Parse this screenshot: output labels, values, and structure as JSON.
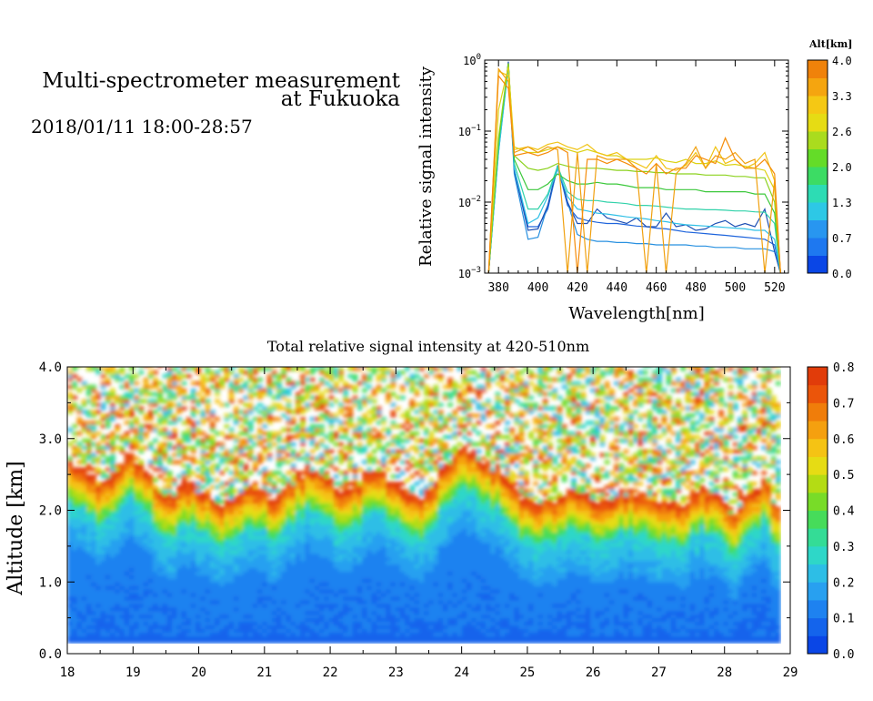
{
  "header": {
    "title_line1": "Multi-spectrometer measurement",
    "title_line2": "at Fukuoka",
    "date_range": "2018/01/11 18:00-28:57"
  },
  "chart_data": [
    {
      "type": "line",
      "name": "spectra",
      "xlabel": "Wavelength[nm]",
      "ylabel": "Relative signal intensity",
      "xlim": [
        373,
        527
      ],
      "ylim": [
        0.001,
        1
      ],
      "yscale": "log",
      "xticks": [
        380,
        400,
        420,
        440,
        460,
        480,
        500,
        520
      ],
      "yticks": [
        0.001,
        0.01,
        0.1,
        1
      ],
      "ytick_labels": [
        [
          "10",
          "−3"
        ],
        [
          "10",
          "−2"
        ],
        [
          "10",
          "−1"
        ],
        [
          "10",
          "0"
        ]
      ],
      "colorbar": {
        "title": "Alt[km]",
        "min": 0.0,
        "max": 4.0,
        "tick_labels": [
          "0.0",
          "0.7",
          "1.3",
          "2.0",
          "2.6",
          "3.3",
          "4.0"
        ],
        "colors": [
          "#0a46e6",
          "#1e78f0",
          "#2896f0",
          "#2dc8e6",
          "#2ddcb4",
          "#3cdc64",
          "#64dc28",
          "#aadc1e",
          "#e6dc14",
          "#f5c814",
          "#f5a50f",
          "#f0820a"
        ]
      },
      "x": [
        375,
        380,
        385,
        388,
        395,
        400,
        405,
        410,
        415,
        420,
        425,
        430,
        435,
        440,
        445,
        450,
        455,
        460,
        465,
        470,
        475,
        480,
        485,
        490,
        495,
        500,
        505,
        510,
        515,
        520,
        523
      ],
      "series": [
        {
          "color": "#1e64dc",
          "values": [
            0.001,
            0.06,
            0.9,
            0.03,
            0.0045,
            0.0045,
            0.008,
            0.032,
            0.009,
            0.006,
            0.0055,
            0.0052,
            0.005,
            0.005,
            0.0048,
            0.0046,
            0.0045,
            0.0043,
            0.0042,
            0.004,
            0.0038,
            0.0037,
            0.0036,
            0.0035,
            0.0034,
            0.0033,
            0.0032,
            0.0031,
            0.003,
            0.0025,
            0.001
          ]
        },
        {
          "color": "#2890e0",
          "values": [
            0.001,
            0.05,
            0.85,
            0.025,
            0.003,
            0.0032,
            0.009,
            0.03,
            0.01,
            0.0035,
            0.003,
            0.0028,
            0.0028,
            0.0027,
            0.0027,
            0.0026,
            0.0026,
            0.0025,
            0.0025,
            0.0025,
            0.0025,
            0.0024,
            0.0024,
            0.0023,
            0.0023,
            0.0023,
            0.0022,
            0.0022,
            0.0022,
            0.002,
            0.001
          ]
        },
        {
          "color": "#1e50b4",
          "values": [
            0.001,
            0.055,
            0.95,
            0.028,
            0.004,
            0.0042,
            0.009,
            0.033,
            0.01,
            0.005,
            0.005,
            0.008,
            0.006,
            0.0055,
            0.005,
            0.006,
            0.0045,
            0.0045,
            0.007,
            0.0045,
            0.0048,
            0.004,
            0.0042,
            0.005,
            0.0055,
            0.0045,
            0.005,
            0.0045,
            0.008,
            0.002,
            0.001
          ]
        },
        {
          "color": "#30c0e6",
          "values": [
            0.001,
            0.05,
            0.8,
            0.03,
            0.005,
            0.006,
            0.012,
            0.03,
            0.012,
            0.008,
            0.0075,
            0.007,
            0.0068,
            0.0065,
            0.0062,
            0.006,
            0.0058,
            0.0055,
            0.0053,
            0.005,
            0.0048,
            0.0047,
            0.0046,
            0.0045,
            0.0044,
            0.0043,
            0.0042,
            0.004,
            0.004,
            0.003,
            0.001
          ]
        },
        {
          "color": "#32d2aa",
          "values": [
            0.001,
            0.06,
            0.85,
            0.035,
            0.008,
            0.008,
            0.013,
            0.032,
            0.014,
            0.011,
            0.0105,
            0.0105,
            0.01,
            0.0098,
            0.0095,
            0.009,
            0.009,
            0.0088,
            0.0085,
            0.0082,
            0.008,
            0.008,
            0.0078,
            0.0078,
            0.0077,
            0.0075,
            0.0075,
            0.0073,
            0.0072,
            0.005,
            0.001
          ]
        },
        {
          "color": "#3cc83c",
          "values": [
            0.001,
            0.07,
            0.9,
            0.04,
            0.015,
            0.015,
            0.018,
            0.025,
            0.02,
            0.018,
            0.018,
            0.019,
            0.018,
            0.018,
            0.017,
            0.016,
            0.016,
            0.016,
            0.015,
            0.015,
            0.015,
            0.015,
            0.014,
            0.014,
            0.014,
            0.014,
            0.014,
            0.013,
            0.013,
            0.007,
            0.001
          ]
        },
        {
          "color": "#8cd21e",
          "values": [
            0.001,
            0.08,
            0.9,
            0.045,
            0.03,
            0.028,
            0.03,
            0.035,
            0.032,
            0.03,
            0.03,
            0.03,
            0.029,
            0.028,
            0.028,
            0.027,
            0.027,
            0.026,
            0.026,
            0.025,
            0.025,
            0.025,
            0.024,
            0.024,
            0.024,
            0.023,
            0.023,
            0.022,
            0.022,
            0.01,
            0.001
          ]
        },
        {
          "color": "#dcd214",
          "values": [
            0.001,
            0.2,
            0.8,
            0.06,
            0.05,
            0.05,
            0.055,
            0.06,
            0.055,
            0.05,
            0.055,
            0.05,
            0.045,
            0.045,
            0.04,
            0.04,
            0.04,
            0.042,
            0.038,
            0.036,
            0.04,
            0.035,
            0.035,
            0.038,
            0.033,
            0.034,
            0.032,
            0.03,
            0.028,
            0.015,
            0.001
          ]
        },
        {
          "color": "#f0c314",
          "values": [
            0.001,
            0.7,
            0.6,
            0.055,
            0.06,
            0.055,
            0.065,
            0.07,
            0.06,
            0.055,
            0.065,
            0.05,
            0.045,
            0.05,
            0.04,
            0.035,
            0.03,
            0.045,
            0.03,
            0.028,
            0.033,
            0.05,
            0.03,
            0.06,
            0.035,
            0.04,
            0.03,
            0.035,
            0.05,
            0.02,
            0.001
          ]
        },
        {
          "color": "#f0a00f",
          "values": [
            0.001,
            0.75,
            0.5,
            0.05,
            0.06,
            0.05,
            0.06,
            0.055,
            0.001,
            0.05,
            0.001,
            0.045,
            0.04,
            0.04,
            0.04,
            0.03,
            0.001,
            0.035,
            0.001,
            0.025,
            0.035,
            0.06,
            0.03,
            0.045,
            0.04,
            0.05,
            0.035,
            0.04,
            0.001,
            0.02,
            0.001
          ]
        },
        {
          "color": "#f58c0a",
          "values": [
            0.001,
            0.6,
            0.4,
            0.045,
            0.05,
            0.045,
            0.05,
            0.06,
            0.05,
            0.001,
            0.04,
            0.04,
            0.035,
            0.04,
            0.035,
            0.03,
            0.025,
            0.035,
            0.025,
            0.03,
            0.03,
            0.045,
            0.04,
            0.035,
            0.08,
            0.04,
            0.03,
            0.03,
            0.04,
            0.025,
            0.001
          ]
        }
      ]
    },
    {
      "type": "heatmap",
      "name": "altitude-time",
      "title": "Total relative signal intensity at 420-510nm",
      "ylabel": "Altitude [km]",
      "xlim": [
        18,
        29
      ],
      "ylim": [
        0.0,
        4.0
      ],
      "xticks": [
        18,
        19,
        20,
        21,
        22,
        23,
        24,
        25,
        26,
        27,
        28,
        29
      ],
      "yticks": [
        "0.0",
        "1.0",
        "2.0",
        "3.0",
        "4.0"
      ],
      "data_end_hour": 28.85,
      "data_bottom_km": 0.15,
      "colorbar": {
        "min": 0.0,
        "max": 0.8,
        "tick_labels": [
          "0.0",
          "0.1",
          "0.2",
          "0.3",
          "0.4",
          "0.5",
          "0.6",
          "0.7",
          "0.8"
        ],
        "colors": [
          "#0a46e6",
          "#1464ec",
          "#1e82f0",
          "#28a0f0",
          "#2dbee6",
          "#2ed7c8",
          "#34dc96",
          "#46dc5a",
          "#78dc28",
          "#b4dc14",
          "#e6dc14",
          "#f5c314",
          "#f5a00f",
          "#f07d0a",
          "#eb550a",
          "#e13c0a"
        ]
      },
      "cloud_base_km": [
        2.4,
        2.3,
        2.1,
        2.2,
        2.5,
        2.4,
        2.0,
        1.9,
        2.1,
        2.0,
        1.8,
        1.9,
        2.1,
        2.0,
        1.9,
        2.1,
        2.3,
        2.2,
        2.1,
        2.0,
        2.2,
        2.3,
        2.1,
        2.0,
        1.9,
        2.2,
        2.5,
        2.6,
        2.4,
        2.3,
        2.0,
        1.9,
        1.8,
        1.9,
        2.0,
        1.9,
        1.8,
        1.9,
        2.0,
        1.9,
        1.8,
        1.8,
        1.9,
        2.0,
        1.9,
        1.7,
        1.9,
        2.1,
        1.8
      ]
    }
  ]
}
